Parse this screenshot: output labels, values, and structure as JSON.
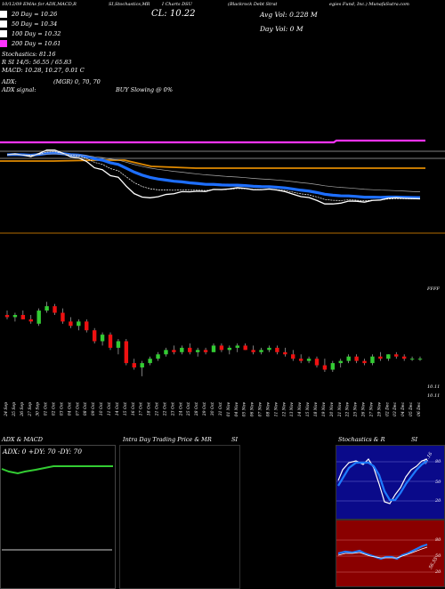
{
  "header": {
    "left": "10/12/09 EMAs for ADX,MACD,R",
    "mid1": "SI,Stochastics,MR",
    "mid2": "I Charts DSU",
    "right1": "(Blackrock Debt Strat",
    "right2": "egies Fund, Inc.) MunafaSutra.com"
  },
  "close": "CL: 10.22",
  "avg_vol": "Avg Vol: 0.228  M",
  "day_vol": "Day Vol: 0  M",
  "legend": [
    {
      "label": "20  Day = 10.26",
      "color": "#ffffff"
    },
    {
      "label": "50  Day = 10.34",
      "color": "#ffffff"
    },
    {
      "label": "100  Day = 10.32",
      "color": "#ffffff"
    },
    {
      "label": "200  Day = 10.61",
      "color": "#ff33ff"
    }
  ],
  "stats": {
    "stochastics": "Stochastics: 81.16",
    "rsi": "R          SI 14/5: 56.55 / 65.83",
    "macd": "MACD: 10.28,  10.27,  0.01 C",
    "adx": "ADX:",
    "mgr": "(MGR) 0,  70,  70",
    "adx_signal": "ADX  signal:",
    "buy_slowing": "BUY Slowing @ 0%"
  },
  "price_labels": {
    "p1": "10.11",
    "p2": "10.11"
  },
  "right_axis_top": "FFFF",
  "dates": [
    "24 Sep",
    "25 Sep",
    "26 Sep",
    "27 Sep",
    "30 Sep",
    "01 Oct",
    "02 Oct",
    "03 Oct",
    "04 Oct",
    "07 Oct",
    "08 Oct",
    "09 Oct",
    "10 Oct",
    "11 Oct",
    "14 Oct",
    "15 Oct",
    "16 Oct",
    "17 Oct",
    "18 Oct",
    "21 Oct",
    "22 Oct",
    "23 Oct",
    "24 Oct",
    "25 Oct",
    "28 Oct",
    "29 Oct",
    "30 Oct",
    "31 Oct",
    "01 Nov",
    "04 Nov",
    "05 Nov",
    "06 Nov",
    "07 Nov",
    "08 Nov",
    "11 Nov",
    "12 Nov",
    "13 Nov",
    "14 Nov",
    "15 Nov",
    "18 Nov",
    "19 Nov",
    "20 Nov",
    "21 Nov",
    "22 Nov",
    "25 Nov",
    "26 Nov",
    "27 Nov",
    "29 Nov",
    "02 Dec",
    "03 Dec",
    "04 Dec",
    "05 Dec",
    "06 Dec"
  ],
  "panels": {
    "adx_title": "ADX  & MACD",
    "adx_values": "ADX: 0  +DY: 70  -DY: 70",
    "intra_title": "Intra  Day Trading Price  & MR",
    "intra_si": "SI",
    "stoch_title": "Stochastics & R",
    "stoch_si": "SI",
    "stoch_ticks": [
      "80",
      "50",
      "20"
    ],
    "rsi_ticks": [
      "80",
      "50",
      "20"
    ],
    "stoch_label": "81.16",
    "rsi_label": "56.55"
  },
  "chart_data": {
    "type": "candlestick",
    "categories": [
      "24 Sep",
      "25 Sep",
      "26 Sep",
      "27 Sep",
      "30 Sep",
      "01 Oct",
      "02 Oct",
      "03 Oct",
      "04 Oct",
      "07 Oct",
      "08 Oct",
      "09 Oct",
      "10 Oct",
      "11 Oct",
      "14 Oct",
      "15 Oct",
      "16 Oct",
      "17 Oct",
      "18 Oct",
      "21 Oct",
      "22 Oct",
      "23 Oct",
      "24 Oct",
      "25 Oct",
      "28 Oct",
      "29 Oct",
      "30 Oct",
      "31 Oct",
      "01 Nov",
      "04 Nov",
      "05 Nov",
      "06 Nov",
      "07 Nov",
      "08 Nov",
      "11 Nov",
      "12 Nov",
      "13 Nov",
      "14 Nov",
      "15 Nov",
      "18 Nov",
      "19 Nov",
      "20 Nov",
      "21 Nov",
      "22 Nov",
      "25 Nov",
      "26 Nov",
      "27 Nov",
      "29 Nov",
      "02 Dec",
      "03 Dec",
      "04 Dec",
      "05 Dec",
      "06 Dec"
    ],
    "ylim": [
      10.05,
      10.55
    ],
    "candles": [
      {
        "o": 10.42,
        "h": 10.44,
        "l": 10.4,
        "c": 10.41
      },
      {
        "o": 10.41,
        "h": 10.43,
        "l": 10.39,
        "c": 10.42
      },
      {
        "o": 10.42,
        "h": 10.44,
        "l": 10.4,
        "c": 10.4
      },
      {
        "o": 10.4,
        "h": 10.42,
        "l": 10.38,
        "c": 10.39
      },
      {
        "o": 10.38,
        "h": 10.45,
        "l": 10.37,
        "c": 10.44
      },
      {
        "o": 10.44,
        "h": 10.48,
        "l": 10.43,
        "c": 10.46
      },
      {
        "o": 10.46,
        "h": 10.47,
        "l": 10.42,
        "c": 10.43
      },
      {
        "o": 10.43,
        "h": 10.45,
        "l": 10.38,
        "c": 10.39
      },
      {
        "o": 10.39,
        "h": 10.41,
        "l": 10.36,
        "c": 10.37
      },
      {
        "o": 10.37,
        "h": 10.4,
        "l": 10.35,
        "c": 10.39
      },
      {
        "o": 10.39,
        "h": 10.4,
        "l": 10.34,
        "c": 10.35
      },
      {
        "o": 10.35,
        "h": 10.36,
        "l": 10.29,
        "c": 10.3
      },
      {
        "o": 10.3,
        "h": 10.34,
        "l": 10.28,
        "c": 10.33
      },
      {
        "o": 10.33,
        "h": 10.34,
        "l": 10.26,
        "c": 10.27
      },
      {
        "o": 10.27,
        "h": 10.31,
        "l": 10.24,
        "c": 10.3
      },
      {
        "o": 10.3,
        "h": 10.31,
        "l": 10.19,
        "c": 10.2
      },
      {
        "o": 10.2,
        "h": 10.22,
        "l": 10.17,
        "c": 10.18
      },
      {
        "o": 10.18,
        "h": 10.21,
        "l": 10.14,
        "c": 10.2
      },
      {
        "o": 10.2,
        "h": 10.23,
        "l": 10.19,
        "c": 10.22
      },
      {
        "o": 10.22,
        "h": 10.25,
        "l": 10.21,
        "c": 10.24
      },
      {
        "o": 10.24,
        "h": 10.27,
        "l": 10.23,
        "c": 10.26
      },
      {
        "o": 10.26,
        "h": 10.28,
        "l": 10.24,
        "c": 10.25
      },
      {
        "o": 10.25,
        "h": 10.28,
        "l": 10.24,
        "c": 10.27
      },
      {
        "o": 10.27,
        "h": 10.29,
        "l": 10.24,
        "c": 10.25
      },
      {
        "o": 10.25,
        "h": 10.27,
        "l": 10.23,
        "c": 10.26
      },
      {
        "o": 10.26,
        "h": 10.27,
        "l": 10.24,
        "c": 10.25
      },
      {
        "o": 10.25,
        "h": 10.29,
        "l": 10.25,
        "c": 10.28
      },
      {
        "o": 10.28,
        "h": 10.29,
        "l": 10.25,
        "c": 10.26
      },
      {
        "o": 10.26,
        "h": 10.28,
        "l": 10.24,
        "c": 10.27
      },
      {
        "o": 10.27,
        "h": 10.29,
        "l": 10.25,
        "c": 10.28
      },
      {
        "o": 10.28,
        "h": 10.29,
        "l": 10.26,
        "c": 10.26
      },
      {
        "o": 10.26,
        "h": 10.28,
        "l": 10.24,
        "c": 10.25
      },
      {
        "o": 10.25,
        "h": 10.27,
        "l": 10.24,
        "c": 10.26
      },
      {
        "o": 10.26,
        "h": 10.28,
        "l": 10.25,
        "c": 10.27
      },
      {
        "o": 10.27,
        "h": 10.28,
        "l": 10.24,
        "c": 10.25
      },
      {
        "o": 10.25,
        "h": 10.27,
        "l": 10.23,
        "c": 10.24
      },
      {
        "o": 10.24,
        "h": 10.26,
        "l": 10.21,
        "c": 10.22
      },
      {
        "o": 10.22,
        "h": 10.24,
        "l": 10.2,
        "c": 10.21
      },
      {
        "o": 10.21,
        "h": 10.23,
        "l": 10.2,
        "c": 10.22
      },
      {
        "o": 10.22,
        "h": 10.23,
        "l": 10.18,
        "c": 10.19
      },
      {
        "o": 10.19,
        "h": 10.22,
        "l": 10.16,
        "c": 10.17
      },
      {
        "o": 10.17,
        "h": 10.21,
        "l": 10.16,
        "c": 10.2
      },
      {
        "o": 10.2,
        "h": 10.22,
        "l": 10.18,
        "c": 10.21
      },
      {
        "o": 10.21,
        "h": 10.24,
        "l": 10.2,
        "c": 10.23
      },
      {
        "o": 10.23,
        "h": 10.24,
        "l": 10.2,
        "c": 10.21
      },
      {
        "o": 10.21,
        "h": 10.22,
        "l": 10.19,
        "c": 10.2
      },
      {
        "o": 10.2,
        "h": 10.24,
        "l": 10.19,
        "c": 10.23
      },
      {
        "o": 10.23,
        "h": 10.25,
        "l": 10.21,
        "c": 10.22
      },
      {
        "o": 10.22,
        "h": 10.24,
        "l": 10.21,
        "c": 10.24
      },
      {
        "o": 10.24,
        "h": 10.25,
        "l": 10.22,
        "c": 10.23
      },
      {
        "o": 10.23,
        "h": 10.24,
        "l": 10.21,
        "c": 10.22
      },
      {
        "o": 10.22,
        "h": 10.23,
        "l": 10.21,
        "c": 10.22
      },
      {
        "o": 10.22,
        "h": 10.23,
        "l": 10.21,
        "c": 10.22
      }
    ],
    "series": [
      {
        "name": "20  Day",
        "color": "#ffffff"
      },
      {
        "name": "50  Day",
        "color": "#ffffff"
      },
      {
        "name": "100  Day",
        "color": "#ffffff"
      },
      {
        "name": "200  Day",
        "color": "#ff33ff"
      }
    ]
  }
}
